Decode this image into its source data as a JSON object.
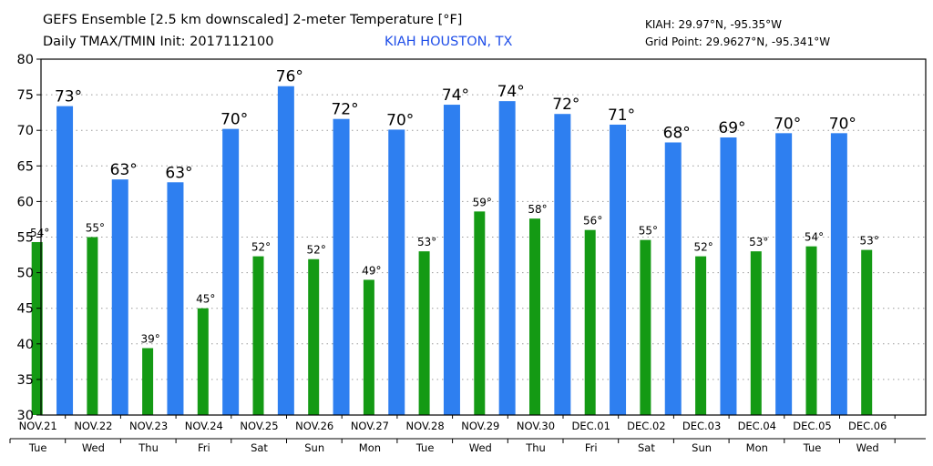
{
  "header": {
    "title": "GEFS Ensemble [2.5 km downscaled] 2-meter Temperature [°F]",
    "subtitle": "Daily TMAX/TMIN Init: 2017112100",
    "station": "KIAH HOUSTON, TX",
    "coord_station": "KIAH: 29.97°N, -95.35°W",
    "coord_grid": "Grid Point: 29.9627°N, -95.341°W"
  },
  "colors": {
    "tmax": "#2e7ff0",
    "tmin": "#149a14",
    "grid": "#9a9a9a",
    "station_text": "#1f4ee8"
  },
  "chart_data": {
    "type": "bar",
    "categories": [
      "NOV.21",
      "NOV.22",
      "NOV.23",
      "NOV.24",
      "NOV.25",
      "NOV.26",
      "NOV.27",
      "NOV.28",
      "NOV.29",
      "NOV.30",
      "DEC.01",
      "DEC.02",
      "DEC.03",
      "DEC.04",
      "DEC.05",
      "DEC.06"
    ],
    "weekdays": [
      "Tue",
      "Wed",
      "Thu",
      "Fri",
      "Sat",
      "Sun",
      "Mon",
      "Tue",
      "Wed",
      "Thu",
      "Fri",
      "Sat",
      "Sun",
      "Mon",
      "Tue",
      "Wed"
    ],
    "tmin": {
      "values": [
        54.3,
        55.0,
        39.4,
        45.0,
        52.3,
        51.9,
        49.0,
        53.0,
        58.6,
        57.6,
        56.0,
        54.6,
        52.3,
        53.0,
        53.7,
        53.2
      ],
      "labels": [
        "54°",
        "55°",
        "39°",
        "45°",
        "52°",
        "52°",
        "49°",
        "53°",
        "59°",
        "58°",
        "56°",
        "55°",
        "52°",
        "53°",
        "54°",
        "53°"
      ]
    },
    "tmax": {
      "values": [
        73.4,
        63.1,
        62.7,
        70.2,
        76.2,
        71.6,
        70.1,
        73.6,
        74.1,
        72.3,
        70.8,
        68.3,
        69.0,
        69.6,
        69.6
      ],
      "labels": [
        "73°",
        "63°",
        "63°",
        "70°",
        "76°",
        "72°",
        "70°",
        "74°",
        "74°",
        "72°",
        "71°",
        "68°",
        "69°",
        "70°",
        "70°"
      ]
    },
    "ylim": [
      30,
      80
    ],
    "yticks": [
      30,
      35,
      40,
      45,
      50,
      55,
      60,
      65,
      70,
      75,
      80
    ],
    "grid": true,
    "xlabel": "",
    "ylabel": ""
  }
}
